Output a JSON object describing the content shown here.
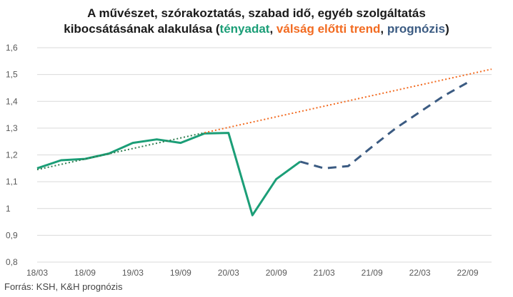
{
  "title": {
    "line1": "A művészet, szórakoztatás, szabad idő, egyéb szolgáltatás",
    "line2_prefix": "kibocsátásának alakulása (",
    "actual_label": "tényadat",
    "sep1": ", ",
    "trend_label": "válság előtti trend",
    "sep2": ", ",
    "forecast_label": "prognózis",
    "suffix": ")"
  },
  "source": "Forrás: KSH, K&H prognózis",
  "colors": {
    "actual": "#1b9e77",
    "trend": "#f26b21",
    "trend_fit": "#2e7d4f",
    "forecast": "#3b5b82",
    "grid": "#d9d9d9"
  },
  "chart_data": {
    "type": "line",
    "title": "A művészet, szórakoztatás, szabad idő, egyéb szolgáltatás kibocsátásának alakulása (tényadat, válság előtti trend, prognózis)",
    "xlabel": "",
    "ylabel": "",
    "ylim": [
      0.8,
      1.6
    ],
    "yticks": [
      "0,8",
      "0,9",
      "1",
      "1,1",
      "1,2",
      "1,3",
      "1,4",
      "1,5",
      "1,6"
    ],
    "xticks": [
      "18/03",
      "18/09",
      "19/03",
      "19/09",
      "20/03",
      "20/09",
      "21/03",
      "21/09",
      "22/03",
      "22/09"
    ],
    "grid": true,
    "series": [
      {
        "name": "tényadat",
        "style": "solid",
        "points": [
          {
            "x": "18/03",
            "y": 1.15
          },
          {
            "x": "18/06",
            "y": 1.18
          },
          {
            "x": "18/09",
            "y": 1.185
          },
          {
            "x": "18/12",
            "y": 1.205
          },
          {
            "x": "19/03",
            "y": 1.245
          },
          {
            "x": "19/06",
            "y": 1.258
          },
          {
            "x": "19/09",
            "y": 1.245
          },
          {
            "x": "19/12",
            "y": 1.28
          },
          {
            "x": "20/03",
            "y": 1.282
          },
          {
            "x": "20/06",
            "y": 0.975
          },
          {
            "x": "20/09",
            "y": 1.11
          },
          {
            "x": "20/12",
            "y": 1.175
          }
        ]
      },
      {
        "name": "válság előtti trend",
        "style": "dotted",
        "points": [
          {
            "x": "18/03",
            "y": 1.145
          },
          {
            "x": "19/12",
            "y": 1.283
          },
          {
            "x": "22/12",
            "y": 1.52
          }
        ]
      },
      {
        "name": "prognózis",
        "style": "dashed",
        "points": [
          {
            "x": "20/12",
            "y": 1.175
          },
          {
            "x": "21/03",
            "y": 1.15
          },
          {
            "x": "21/06",
            "y": 1.158
          },
          {
            "x": "21/09",
            "y": 1.23
          },
          {
            "x": "21/12",
            "y": 1.3
          },
          {
            "x": "22/03",
            "y": 1.36
          },
          {
            "x": "22/06",
            "y": 1.42
          },
          {
            "x": "22/09",
            "y": 1.47
          }
        ]
      }
    ]
  }
}
